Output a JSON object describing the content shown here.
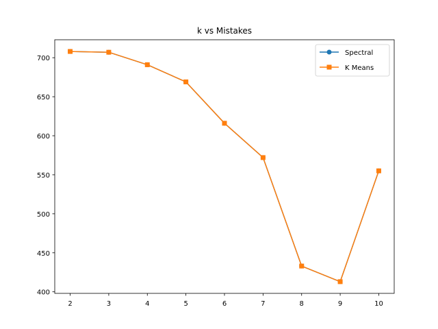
{
  "chart_data": {
    "type": "line",
    "title": "k vs Mistakes",
    "xlabel": "",
    "ylabel": "",
    "x": [
      2,
      3,
      4,
      5,
      6,
      7,
      8,
      9,
      10
    ],
    "xlim": [
      1.6,
      10.4
    ],
    "ylim": [
      398,
      723
    ],
    "xticks": [
      2,
      3,
      4,
      5,
      6,
      7,
      8,
      9,
      10
    ],
    "yticks": [
      400,
      450,
      500,
      550,
      600,
      650,
      700
    ],
    "grid": false,
    "legend_position": "top-right",
    "series": [
      {
        "name": "Spectral",
        "marker": "circle",
        "color": "#1f77b4",
        "values": [
          708,
          707,
          691,
          669,
          616,
          572,
          433,
          413,
          555
        ]
      },
      {
        "name": "K Means",
        "marker": "square",
        "color": "#ff7f0e",
        "values": [
          708,
          707,
          691,
          669,
          616,
          572,
          433,
          413,
          555
        ]
      }
    ]
  }
}
